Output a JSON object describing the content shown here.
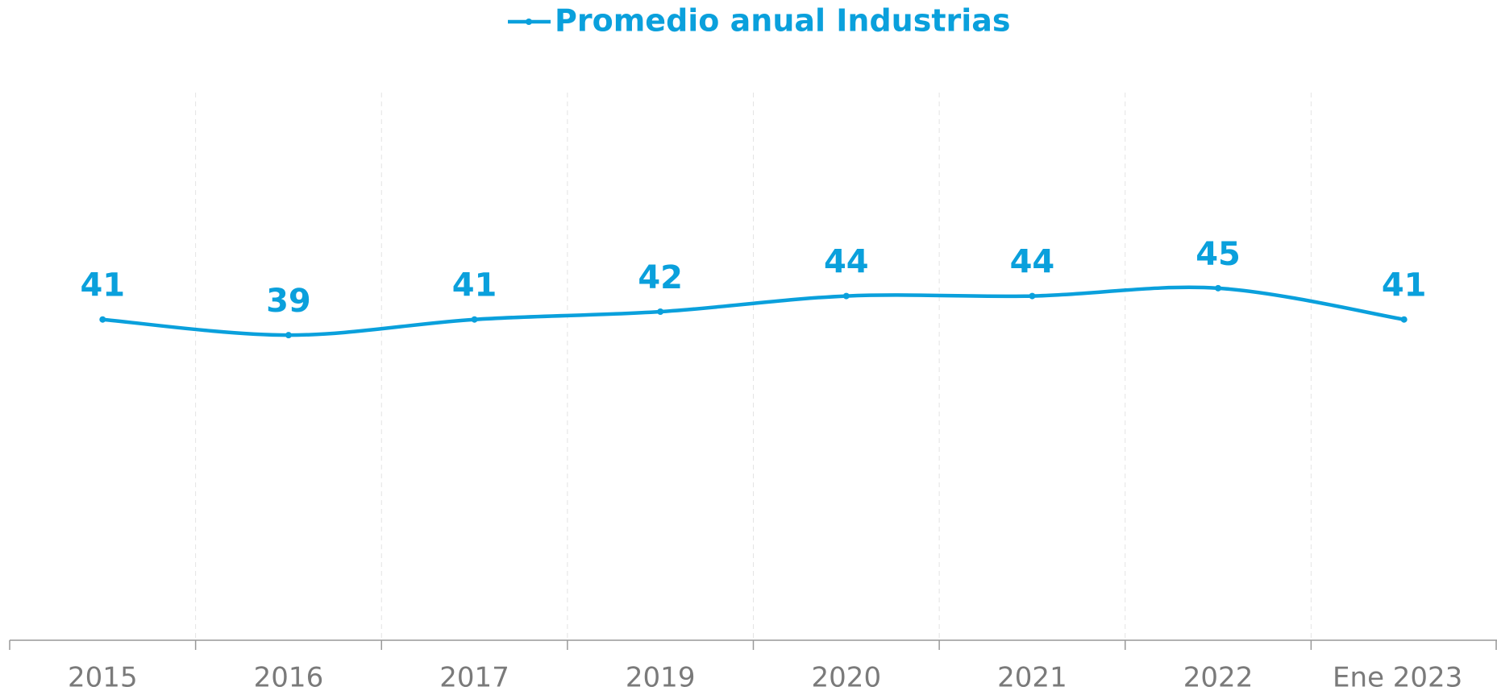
{
  "chart_data": {
    "type": "line",
    "categories": [
      "2015",
      "2016",
      "2017",
      "2019",
      "2020",
      "2021",
      "2022",
      "Ene 2023"
    ],
    "series": [
      {
        "name": "Promedio anual Industrias",
        "color": "#0aa0dc",
        "values": [
          41,
          39,
          41,
          42,
          44,
          44,
          45,
          41
        ]
      }
    ],
    "ylim": [
      0,
      70
    ],
    "smooth": true,
    "data_labels": true,
    "legend": "top"
  }
}
